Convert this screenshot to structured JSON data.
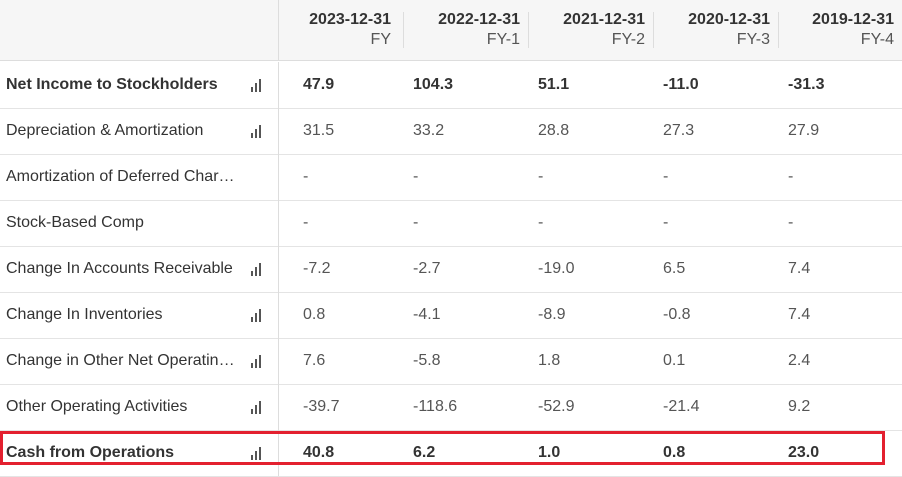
{
  "columns": [
    {
      "date": "2023-12-31",
      "period": "FY"
    },
    {
      "date": "2022-12-31",
      "period": "FY-1"
    },
    {
      "date": "2021-12-31",
      "period": "FY-2"
    },
    {
      "date": "2020-12-31",
      "period": "FY-3"
    },
    {
      "date": "2019-12-31",
      "period": "FY-4"
    }
  ],
  "rows": [
    {
      "label": "Net Income to Stockholders",
      "icon": "bar-chart-icon",
      "values": [
        "47.9",
        "104.3",
        "51.1",
        "-11.0",
        "-31.3"
      ]
    },
    {
      "label": "Depreciation & Amortization",
      "icon": "bar-chart-icon",
      "values": [
        "31.5",
        "33.2",
        "28.8",
        "27.3",
        "27.9"
      ]
    },
    {
      "label": "Amortization of Deferred Charges",
      "icon": "",
      "values": [
        "-",
        "-",
        "-",
        "-",
        "-"
      ]
    },
    {
      "label": "Stock-Based Comp",
      "icon": "",
      "values": [
        "-",
        "-",
        "-",
        "-",
        "-"
      ]
    },
    {
      "label": "Change In Accounts Receivable",
      "icon": "bar-chart-icon",
      "values": [
        "-7.2",
        "-2.7",
        "-19.0",
        "6.5",
        "7.4"
      ]
    },
    {
      "label": "Change In Inventories",
      "icon": "bar-chart-icon",
      "values": [
        "0.8",
        "-4.1",
        "-8.9",
        "-0.8",
        "7.4"
      ]
    },
    {
      "label": "Change in Other Net Operating Assets",
      "icon": "bar-chart-icon",
      "values": [
        "7.6",
        "-5.8",
        "1.8",
        "0.1",
        "2.4"
      ]
    },
    {
      "label": "Other Operating Activities",
      "icon": "bar-chart-icon",
      "values": [
        "-39.7",
        "-118.6",
        "-52.9",
        "-21.4",
        "9.2"
      ]
    },
    {
      "label": "Cash from Operations",
      "icon": "bar-chart-icon",
      "values": [
        "40.8",
        "6.2",
        "1.0",
        "0.8",
        "23.0"
      ]
    }
  ],
  "highlight_color": "#e3202f"
}
